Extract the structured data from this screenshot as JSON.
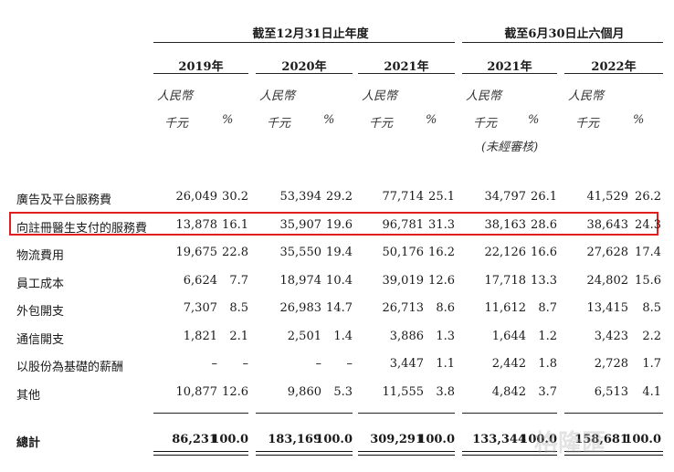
{
  "headers": {
    "group_year": "截至12月31日止年度",
    "group_half": "截至6月30日止六個月",
    "years": [
      "2019年",
      "2020年",
      "2021年",
      "2021年",
      "2022年"
    ],
    "currency": "人民幣",
    "unit": "千元",
    "pct": "%",
    "unaudited": "(未經審核)"
  },
  "rows": [
    {
      "label": "廣告及平台服務費",
      "values": [
        "26,049",
        "30.2",
        "53,394",
        "29.2",
        "77,714",
        "25.1",
        "34,797",
        "26.1",
        "41,529",
        "26.2"
      ]
    },
    {
      "label": "向註冊醫生支付的服務費",
      "values": [
        "13,878",
        "16.1",
        "35,907",
        "19.6",
        "96,781",
        "31.3",
        "38,163",
        "28.6",
        "38,643",
        "24.3"
      ]
    },
    {
      "label": "物流費用",
      "values": [
        "19,675",
        "22.8",
        "35,550",
        "19.4",
        "50,176",
        "16.2",
        "22,126",
        "16.6",
        "27,628",
        "17.4"
      ]
    },
    {
      "label": "員工成本",
      "values": [
        "6,624",
        "7.7",
        "18,974",
        "10.4",
        "39,019",
        "12.6",
        "17,718",
        "13.3",
        "24,802",
        "15.6"
      ]
    },
    {
      "label": "外包開支",
      "values": [
        "7,307",
        "8.5",
        "26,983",
        "14.7",
        "26,713",
        "8.6",
        "11,612",
        "8.7",
        "13,415",
        "8.5"
      ]
    },
    {
      "label": "通信開支",
      "values": [
        "1,821",
        "2.1",
        "2,501",
        "1.4",
        "3,886",
        "1.3",
        "1,644",
        "1.2",
        "3,423",
        "2.2"
      ]
    },
    {
      "label": "以股份為基礎的薪酬",
      "values": [
        "–",
        "–",
        "–",
        "–",
        "3,447",
        "1.1",
        "2,442",
        "1.8",
        "2,728",
        "1.7"
      ]
    },
    {
      "label": "其他",
      "values": [
        "10,877",
        "12.6",
        "9,860",
        "5.3",
        "11,555",
        "3.8",
        "4,842",
        "3.7",
        "6,513",
        "4.1"
      ]
    }
  ],
  "total": {
    "label": "總計",
    "values": [
      "86,231",
      "100.0",
      "183,169",
      "100.0",
      "309,291",
      "100.0",
      "133,344",
      "100.0",
      "158,681",
      "100.0"
    ]
  },
  "watermark": "格隆匯"
}
